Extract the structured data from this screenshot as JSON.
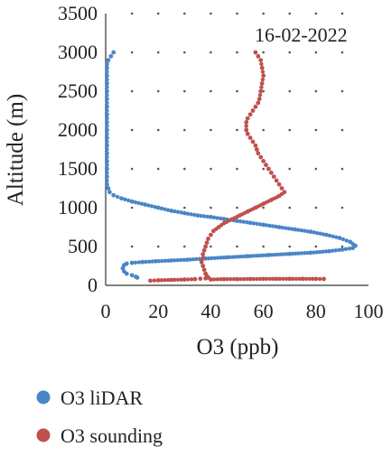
{
  "chart_data": {
    "type": "scatter",
    "title": "",
    "annotation": "16-02-2022",
    "xlabel": "O3 (ppb)",
    "ylabel": "Altitude (m)",
    "xlim": [
      0,
      100
    ],
    "ylim": [
      0,
      3500
    ],
    "x_ticks": [
      0,
      20,
      40,
      60,
      80,
      100
    ],
    "y_ticks": [
      0,
      500,
      1000,
      1500,
      2000,
      2500,
      3000,
      3500
    ],
    "grid": "dotted",
    "legend_position": "bottom",
    "series": [
      {
        "name": "O3 liDAR",
        "color": "#4a86c7",
        "x": [
          3,
          2,
          1,
          0.5,
          0.5,
          0.5,
          0.5,
          0.5,
          0.5,
          0.5,
          0.5,
          0.5,
          0.5,
          0.5,
          0.5,
          0.5,
          0.5,
          0.5,
          0.5,
          0.5,
          1,
          1.5,
          3,
          6,
          10,
          15,
          20,
          25,
          30,
          35,
          40,
          45,
          50,
          55,
          60,
          66,
          72,
          78,
          84,
          89,
          93,
          95,
          94,
          90,
          85,
          78,
          70,
          62,
          54,
          46,
          38,
          31,
          25,
          19,
          14,
          10,
          8,
          7,
          6.5,
          7,
          8,
          10,
          11.5,
          12
        ],
        "y": [
          3000,
          2950,
          2900,
          2850,
          2800,
          2700,
          2600,
          2500,
          2400,
          2300,
          2200,
          2100,
          2000,
          1900,
          1800,
          1700,
          1600,
          1500,
          1400,
          1300,
          1250,
          1200,
          1160,
          1120,
          1080,
          1040,
          1000,
          960,
          930,
          900,
          880,
          855,
          830,
          805,
          780,
          750,
          720,
          690,
          650,
          610,
          560,
          510,
          480,
          460,
          440,
          420,
          405,
          390,
          375,
          360,
          345,
          330,
          320,
          310,
          300,
          290,
          280,
          260,
          220,
          180,
          150,
          130,
          110,
          100
        ]
      },
      {
        "name": "O3 sounding",
        "color": "#c0504d",
        "x": [
          57,
          58,
          59,
          59.5,
          60,
          59.5,
          59,
          58.5,
          58,
          57,
          56,
          55,
          54,
          53.5,
          53.5,
          54,
          55,
          56,
          57,
          57.5,
          58,
          59,
          60,
          61,
          62,
          63,
          64,
          65,
          66,
          67,
          68,
          66,
          63,
          60,
          57,
          54,
          51,
          48,
          45,
          43,
          41,
          40,
          39,
          38.5,
          38,
          37.5,
          37,
          37,
          36.5,
          37,
          37.5,
          38,
          38.5,
          39,
          38,
          36,
          34,
          30,
          25,
          20,
          17
        ],
        "y": [
          3000,
          2950,
          2900,
          2800,
          2700,
          2600,
          2500,
          2400,
          2350,
          2300,
          2250,
          2200,
          2150,
          2100,
          2000,
          1950,
          1900,
          1850,
          1800,
          1750,
          1700,
          1650,
          1600,
          1550,
          1500,
          1450,
          1400,
          1350,
          1300,
          1250,
          1200,
          1150,
          1100,
          1050,
          1000,
          950,
          900,
          850,
          800,
          750,
          700,
          650,
          600,
          550,
          500,
          450,
          400,
          350,
          300,
          250,
          200,
          150,
          120,
          100,
          90,
          85,
          80,
          75,
          70,
          65,
          60
        ]
      },
      {
        "name": "",
        "color": "#c0504d",
        "x": [
          40,
          45,
          50,
          55,
          60,
          65,
          70,
          75,
          80,
          83
        ],
        "y": [
          75,
          80,
          80,
          82,
          83,
          83,
          84,
          84,
          83,
          82
        ]
      }
    ]
  }
}
